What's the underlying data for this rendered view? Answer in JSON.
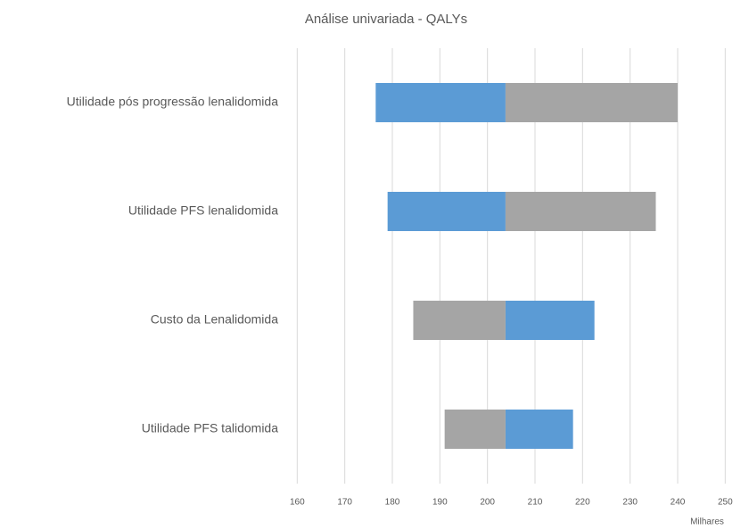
{
  "chart_data": {
    "type": "tornado",
    "title": "Análise univariada - QALYs",
    "x_axis_label": "Milhares",
    "categories": [
      "Utilidade pós progressão lenalidomida",
      "Utilidade PFS lenalidomida",
      "Custo da Lenalidomida",
      "Utilidade PFS talidomida"
    ],
    "base": 203.8,
    "series": [
      {
        "color": "#5b9bd5",
        "values": [
          176.5,
          179,
          222.5,
          218
        ]
      },
      {
        "color": "#a5a5a5",
        "values": [
          240,
          235.4,
          184.4,
          191
        ]
      }
    ],
    "xlim": [
      156,
      255
    ],
    "xticks": [
      160,
      170,
      180,
      190,
      200,
      210,
      220,
      230,
      240,
      250
    ],
    "grid": true
  }
}
